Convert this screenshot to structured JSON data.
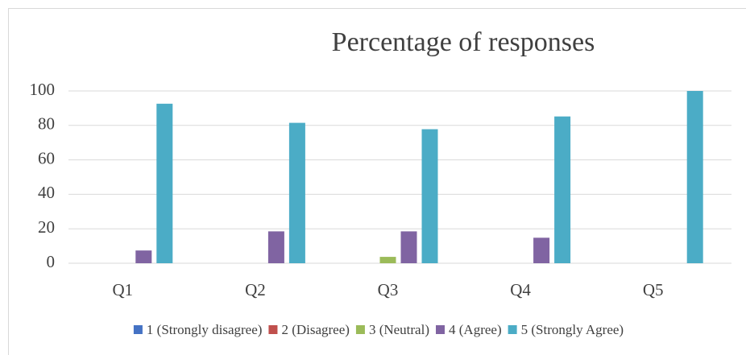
{
  "chart_data": {
    "type": "bar",
    "title": "Percentage of responses",
    "categories": [
      "Q1",
      "Q2",
      "Q3",
      "Q4",
      "Q5"
    ],
    "series": [
      {
        "name": "1 (Strongly disagree)",
        "color": "#4472c4",
        "values": [
          0,
          0,
          0,
          0,
          0
        ]
      },
      {
        "name": "2 (Disagree)",
        "color": "#c0504d",
        "values": [
          0,
          0,
          0,
          0,
          0
        ]
      },
      {
        "name": "3 (Neutral)",
        "color": "#9bbb59",
        "values": [
          0,
          0,
          3.7,
          0,
          0
        ]
      },
      {
        "name": "4 (Agree)",
        "color": "#8064a2",
        "values": [
          7.4,
          18.5,
          18.5,
          14.8,
          0
        ]
      },
      {
        "name": "5 (Strongly Agree)",
        "color": "#4bacc6",
        "values": [
          92.6,
          81.5,
          77.8,
          85.2,
          100
        ]
      }
    ],
    "ylim": [
      0,
      100
    ],
    "yticks": [
      0,
      20,
      40,
      60,
      80,
      100
    ],
    "grid": true,
    "legend": "bottom"
  }
}
